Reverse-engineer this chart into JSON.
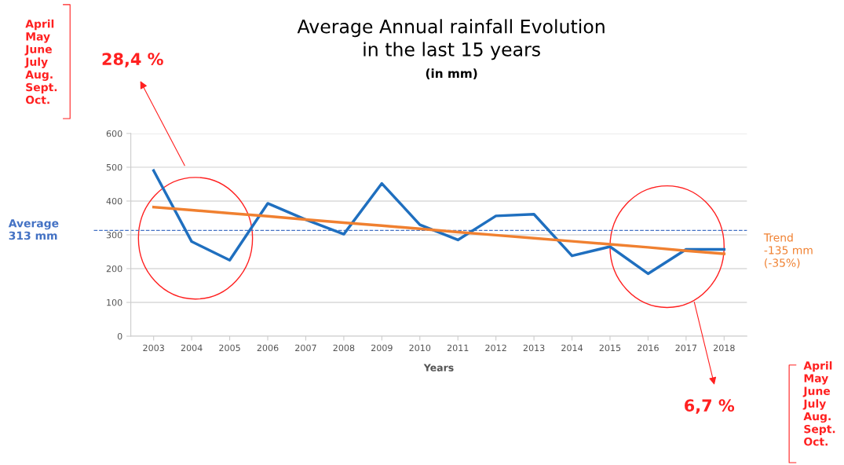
{
  "chart_data": {
    "type": "line",
    "title": "Average Annual rainfall Evolution\nin the last 15 years",
    "subtitle": "(in mm)",
    "xlabel": "Years",
    "categories": [
      "2003",
      "2004",
      "2005",
      "2006",
      "2007",
      "2008",
      "2009",
      "2010",
      "2011",
      "2012",
      "2013",
      "2014",
      "2015",
      "2016",
      "2017",
      "2018"
    ],
    "series": [
      {
        "color": "#1f6fbf",
        "values": [
          490,
          280,
          225,
          393,
          345,
          302,
          452,
          330,
          285,
          356,
          361,
          238,
          265,
          185,
          257,
          257
        ]
      },
      {
        "color": "#f08030",
        "values": [
          382,
          373,
          364,
          355,
          345,
          336,
          327,
          318,
          308,
          299,
          290,
          281,
          272,
          263,
          253,
          244
        ]
      }
    ],
    "ylim": [
      0,
      600
    ],
    "yticks": [
      0,
      100,
      200,
      300,
      400,
      500,
      600
    ],
    "grid": "y",
    "ref_lines": [
      {
        "axis": "y",
        "value": 313,
        "label": "Average\n313 mm",
        "color": "#4472c4",
        "line_style": "dashed"
      }
    ],
    "annotations": [
      "Trend\n-135 mm\n(-35%)",
      "28,4 %",
      "April\nMay\nJune\nJuly\nAug.\nSept.\nOct.",
      "6,7 %",
      "April\nMay\nJune\nJuly\nAug.\nSept.\nOct."
    ]
  }
}
